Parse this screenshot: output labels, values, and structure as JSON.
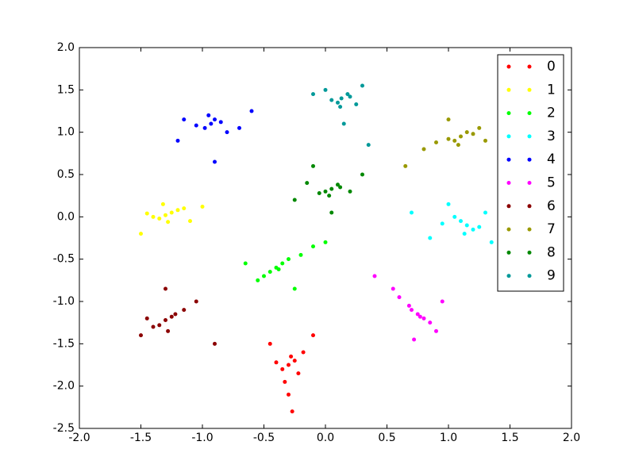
{
  "chart_data": {
    "type": "scatter",
    "xlim": [
      -2,
      2
    ],
    "ylim": [
      -2.5,
      2
    ],
    "xticks": [
      {
        "value": -2,
        "label": "-2.0"
      },
      -1.5,
      {
        "value": -1,
        "label": "-1.0"
      },
      -0.5,
      {
        "value": 0,
        "label": "0.0"
      },
      0.5,
      {
        "value": 1,
        "label": "1.0"
      },
      1.5,
      {
        "value": 2,
        "label": "2.0"
      }
    ],
    "yticks": [
      {
        "value": -2.5,
        "label": "-2.5"
      },
      {
        "value": -2,
        "label": "-2.0"
      },
      -1.5,
      {
        "value": -1,
        "label": "-1.0"
      },
      -0.5,
      {
        "value": 0,
        "label": "0.0"
      },
      0.5,
      {
        "value": 1,
        "label": "1.0"
      },
      1.5,
      {
        "value": 2,
        "label": "2.0"
      }
    ],
    "grid": false,
    "legend": "upper right",
    "series": [
      {
        "name": "0",
        "color": "#ff0000",
        "x": [
          -0.3,
          -0.25,
          -0.35,
          -0.28,
          -0.22,
          -0.4,
          -0.33,
          -0.18,
          -0.3,
          -0.45,
          -0.1,
          -0.27
        ],
        "values": [
          -1.75,
          -1.7,
          -1.8,
          -1.65,
          -1.85,
          -1.72,
          -1.95,
          -1.6,
          -2.1,
          -1.5,
          -1.4,
          -2.3
        ]
      },
      {
        "name": "1",
        "color": "#ffff00",
        "x": [
          -1.3,
          -1.25,
          -1.35,
          -1.2,
          -1.4,
          -1.28,
          -1.15,
          -1.45,
          -1.1,
          -1.5,
          -1.32,
          -1.0
        ],
        "values": [
          0.02,
          0.05,
          -0.02,
          0.08,
          0.0,
          -0.06,
          0.1,
          0.04,
          -0.05,
          -0.2,
          0.15,
          0.12
        ]
      },
      {
        "name": "2",
        "color": "#00ff00",
        "x": [
          -0.4,
          -0.35,
          -0.45,
          -0.3,
          -0.5,
          -0.38,
          -0.2,
          -0.55,
          -0.1,
          -0.65,
          -0.25,
          0.0
        ],
        "values": [
          -0.6,
          -0.55,
          -0.65,
          -0.5,
          -0.7,
          -0.62,
          -0.45,
          -0.75,
          -0.35,
          -0.55,
          -0.85,
          -0.3
        ]
      },
      {
        "name": "3",
        "color": "#00ffff",
        "x": [
          1.15,
          1.1,
          1.2,
          1.05,
          1.25,
          1.13,
          0.95,
          1.3,
          0.85,
          1.35,
          1.0,
          0.7
        ],
        "values": [
          -0.1,
          -0.05,
          -0.15,
          0.0,
          -0.12,
          -0.2,
          -0.08,
          0.05,
          -0.25,
          -0.3,
          0.15,
          0.05
        ]
      },
      {
        "name": "4",
        "color": "#0000ff",
        "x": [
          -0.93,
          -0.9,
          -0.98,
          -0.85,
          -1.05,
          -0.95,
          -0.8,
          -1.15,
          -0.7,
          -1.2,
          -0.9,
          -0.6
        ],
        "values": [
          1.1,
          1.15,
          1.05,
          1.12,
          1.08,
          1.2,
          1.0,
          1.15,
          1.05,
          0.9,
          0.65,
          1.25
        ]
      },
      {
        "name": "5",
        "color": "#ff00ff",
        "x": [
          0.75,
          0.7,
          0.8,
          0.68,
          0.85,
          0.77,
          0.6,
          0.9,
          0.55,
          0.95,
          0.72,
          0.4
        ],
        "values": [
          -1.15,
          -1.1,
          -1.2,
          -1.05,
          -1.25,
          -1.18,
          -0.95,
          -1.35,
          -0.85,
          -1.0,
          -1.45,
          -0.7
        ]
      },
      {
        "name": "6",
        "color": "#8b0000",
        "x": [
          -1.3,
          -1.25,
          -1.35,
          -1.22,
          -1.4,
          -1.28,
          -1.15,
          -1.45,
          -1.05,
          -1.5,
          -1.3,
          -0.9
        ],
        "values": [
          -1.22,
          -1.18,
          -1.28,
          -1.15,
          -1.3,
          -1.35,
          -1.1,
          -1.2,
          -1.0,
          -1.4,
          -0.85,
          -1.5
        ]
      },
      {
        "name": "7",
        "color": "#999900",
        "x": [
          1.1,
          1.05,
          1.15,
          1.0,
          1.2,
          1.08,
          0.9,
          1.25,
          0.8,
          1.3,
          1.0,
          0.65
        ],
        "values": [
          0.95,
          0.9,
          1.0,
          0.92,
          0.98,
          0.85,
          0.88,
          1.05,
          0.8,
          0.9,
          1.15,
          0.6
        ]
      },
      {
        "name": "8",
        "color": "#008800",
        "x": [
          0.05,
          0.0,
          0.1,
          -0.05,
          0.12,
          0.03,
          -0.15,
          0.2,
          -0.25,
          0.3,
          0.05,
          -0.1
        ],
        "values": [
          0.33,
          0.3,
          0.38,
          0.28,
          0.35,
          0.25,
          0.4,
          0.3,
          0.2,
          0.5,
          0.05,
          0.6
        ]
      },
      {
        "name": "9",
        "color": "#009999",
        "x": [
          0.13,
          0.1,
          0.18,
          0.05,
          0.2,
          0.12,
          0.0,
          0.25,
          -0.1,
          0.3,
          0.15,
          0.35
        ],
        "values": [
          1.4,
          1.35,
          1.45,
          1.38,
          1.42,
          1.3,
          1.5,
          1.33,
          1.45,
          1.55,
          1.1,
          0.85
        ]
      }
    ]
  }
}
